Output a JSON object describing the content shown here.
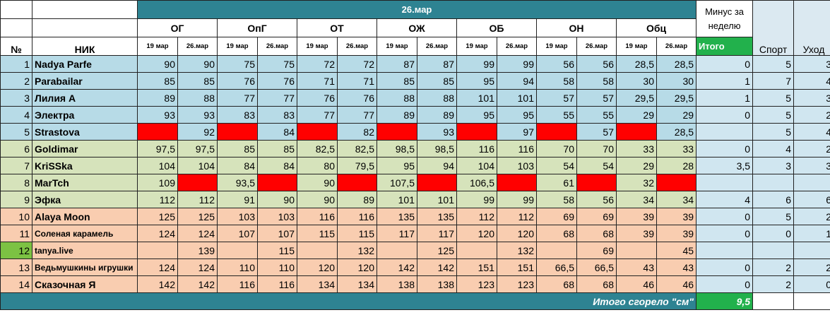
{
  "header": {
    "date_title": "26.мар",
    "num_label": "№",
    "nick_label": "НИК",
    "minus_label": "Минус за неделю",
    "itogo_label": "Итого",
    "sport_label": "Спорт",
    "ukhod_label": "Уход",
    "groups": [
      "ОГ",
      "ОпГ",
      "ОТ",
      "ОЖ",
      "ОБ",
      "ОН",
      "Обц"
    ],
    "sub_dates": [
      "19 мар",
      "26.мар"
    ]
  },
  "rows": [
    {
      "num": "1",
      "nick": "Nadya Parfe",
      "group": "blue",
      "values": [
        "90",
        "90",
        "75",
        "75",
        "72",
        "72",
        "87",
        "87",
        "99",
        "99",
        "56",
        "56",
        "28,5",
        "28,5"
      ],
      "itogo": "0",
      "sport": "5",
      "ukhod": "3"
    },
    {
      "num": "2",
      "nick": "Parabailar",
      "group": "blue",
      "values": [
        "85",
        "85",
        "76",
        "76",
        "71",
        "71",
        "85",
        "85",
        "95",
        "94",
        "58",
        "58",
        "30",
        "30"
      ],
      "itogo": "1",
      "sport": "7",
      "ukhod": "4"
    },
    {
      "num": "3",
      "nick": "Лилия А",
      "group": "blue",
      "values": [
        "89",
        "88",
        "77",
        "77",
        "76",
        "76",
        "88",
        "88",
        "101",
        "101",
        "57",
        "57",
        "29,5",
        "29,5"
      ],
      "itogo": "1",
      "sport": "5",
      "ukhod": "3"
    },
    {
      "num": "4",
      "nick": "Электра",
      "group": "blue",
      "values": [
        "93",
        "93",
        "83",
        "83",
        "77",
        "77",
        "89",
        "89",
        "95",
        "95",
        "55",
        "55",
        "29",
        "29"
      ],
      "itogo": "0",
      "sport": "5",
      "ukhod": "2"
    },
    {
      "num": "5",
      "nick": "Strastova",
      "group": "blue",
      "values": [
        "",
        "92",
        "",
        "84",
        "",
        "82",
        "",
        "93",
        "",
        "97",
        "",
        "57",
        "",
        "28,5"
      ],
      "red": [
        0,
        2,
        4,
        6,
        8,
        10,
        12
      ],
      "itogo": "",
      "sport": "5",
      "ukhod": "4"
    },
    {
      "num": "6",
      "nick": "Goldimar",
      "group": "green",
      "values": [
        "97,5",
        "97,5",
        "85",
        "85",
        "82,5",
        "82,5",
        "98,5",
        "98,5",
        "116",
        "116",
        "70",
        "70",
        "33",
        "33"
      ],
      "itogo": "0",
      "sport": "4",
      "ukhod": "2"
    },
    {
      "num": "7",
      "nick": "KriSSka",
      "group": "green",
      "values": [
        "104",
        "104",
        "84",
        "84",
        "80",
        "79,5",
        "95",
        "94",
        "104",
        "103",
        "54",
        "54",
        "29",
        "28"
      ],
      "itogo": "3,5",
      "sport": "3",
      "ukhod": "3"
    },
    {
      "num": "8",
      "nick": "MarTch",
      "group": "green",
      "values": [
        "109",
        "",
        "93,5",
        "",
        "90",
        "",
        "107,5",
        "",
        "106,5",
        "",
        "61",
        "",
        "32",
        ""
      ],
      "red": [
        1,
        3,
        5,
        7,
        9,
        11,
        13
      ],
      "itogo": "",
      "sport": "",
      "ukhod": ""
    },
    {
      "num": "9",
      "nick": "Эфка",
      "group": "green",
      "values": [
        "112",
        "112",
        "91",
        "90",
        "90",
        "89",
        "101",
        "101",
        "99",
        "99",
        "58",
        "56",
        "34",
        "34"
      ],
      "itogo": "4",
      "sport": "6",
      "ukhod": "6"
    },
    {
      "num": "10",
      "nick": "Alaya Moon",
      "group": "orange",
      "values": [
        "125",
        "125",
        "103",
        "103",
        "116",
        "116",
        "135",
        "135",
        "112",
        "112",
        "69",
        "69",
        "39",
        "39"
      ],
      "itogo": "0",
      "sport": "5",
      "ukhod": "2"
    },
    {
      "num": "11",
      "nick": "Соленая карамель",
      "group": "orange",
      "small": true,
      "values": [
        "124",
        "124",
        "107",
        "107",
        "115",
        "115",
        "117",
        "117",
        "120",
        "120",
        "68",
        "68",
        "39",
        "39"
      ],
      "itogo": "0",
      "sport": "0",
      "ukhod": "1"
    },
    {
      "num": "12",
      "nick": "tanya.live",
      "group": "orange",
      "small": true,
      "numGreen": true,
      "values": [
        "",
        "139",
        "",
        "115",
        "",
        "132",
        "",
        "125",
        "",
        "132",
        "",
        "69",
        "",
        "45"
      ],
      "itogo": "",
      "sport": "",
      "ukhod": ""
    },
    {
      "num": "13",
      "nick": "Ведьмушкины игрушки",
      "group": "orange",
      "small": true,
      "values": [
        "124",
        "124",
        "110",
        "110",
        "120",
        "120",
        "142",
        "142",
        "151",
        "151",
        "66,5",
        "66,5",
        "43",
        "43"
      ],
      "itogo": "0",
      "sport": "2",
      "ukhod": "2"
    },
    {
      "num": "14",
      "nick": "Сказочная Я",
      "group": "orange",
      "values": [
        "142",
        "142",
        "116",
        "116",
        "134",
        "134",
        "138",
        "138",
        "123",
        "123",
        "68",
        "68",
        "46",
        "46"
      ],
      "itogo": "0",
      "sport": "2",
      "ukhod": "0"
    }
  ],
  "footer": {
    "total_label": "Итого сгорело \"см\"",
    "total_value": "9,5"
  },
  "colors": {
    "teal": "#2e8392",
    "green": "#22b14c",
    "red": "#ff0000",
    "row_blue": "#b7dbe7",
    "row_green": "#d6e3bb",
    "row_orange": "#f9cdb0"
  }
}
